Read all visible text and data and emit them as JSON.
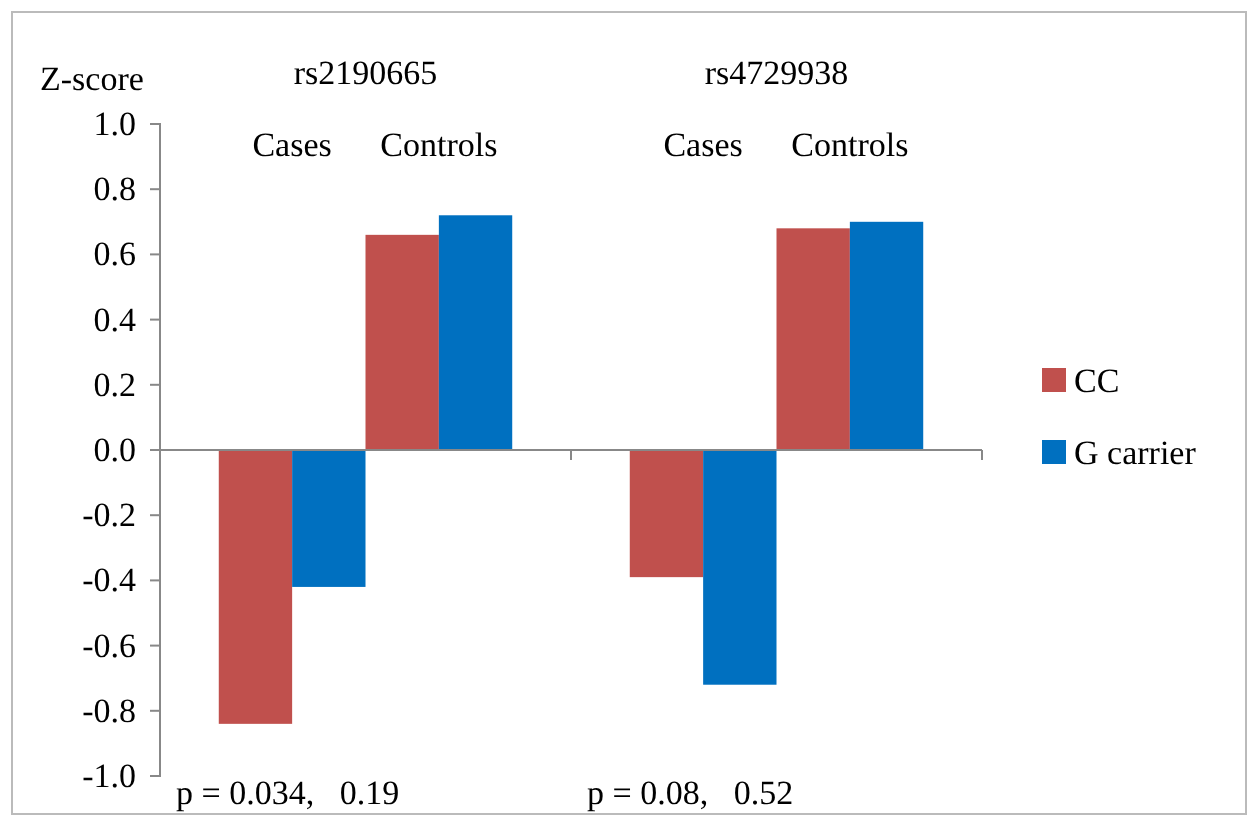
{
  "chart_data": {
    "type": "bar",
    "ylabel": "Z-score",
    "categories": [
      "Cases",
      "Controls",
      "Cases",
      "Controls"
    ],
    "series": [
      {
        "name": "CC",
        "color": "#c0504d",
        "values": [
          -0.84,
          0.66,
          -0.39,
          0.68
        ]
      },
      {
        "name": "G carrier",
        "color": "#0070c0",
        "values": [
          -0.42,
          0.72,
          -0.72,
          0.7
        ]
      }
    ],
    "ylim": [
      -1.0,
      1.0
    ],
    "yticks": [
      {
        "value": -1,
        "label": "-1.0"
      },
      {
        "value": -0.8,
        "label": "-0.8"
      },
      {
        "value": -0.6,
        "label": "-0.6"
      },
      {
        "value": -0.4,
        "label": "-0.4"
      },
      {
        "value": -0.2,
        "label": "-0.2"
      },
      {
        "value": 0,
        "label": "0.0"
      },
      {
        "value": 0.2,
        "label": "0.2"
      },
      {
        "value": 0.4,
        "label": "0.4"
      },
      {
        "value": 0.6,
        "label": "0.6"
      },
      {
        "value": 0.8,
        "label": "0.8"
      },
      {
        "value": 1,
        "label": "1.0"
      }
    ],
    "annotations": [
      "rs2190665",
      "rs4729938",
      "p = 0.034,   0.19",
      "p = 0.08,   0.52"
    ],
    "legend": "right"
  }
}
